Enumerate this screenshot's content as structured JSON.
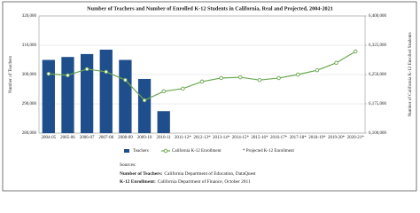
{
  "chart_data": {
    "type": "combo",
    "title": "Number of Teachers and Number of Enrolled K-12 Students in California, Real and Projected, 2004-2021",
    "y_label": "Number of Teachers",
    "y2_label": "Number of California K-12 Enrolled Students",
    "categories": [
      "2004-05",
      "2005-06",
      "2006-07",
      "2007-08",
      "2008-09",
      "2009-10",
      "2010-11",
      "2011-12*",
      "2012-13*",
      "2013-14*",
      "2014-15*",
      "2015-16*",
      "2016-17*",
      "2017-18*",
      "2018-19*",
      "2019-20*",
      "2020-21*"
    ],
    "series": [
      {
        "name": "Teachers",
        "type": "bar",
        "color": "#1f4e8c",
        "values": [
          305000,
          306000,
          307000,
          308500,
          305000,
          298500,
          287500,
          null,
          null,
          null,
          null,
          null,
          null,
          null,
          null,
          null,
          null
        ]
      },
      {
        "name": "California K-12 Enrollment",
        "type": "line",
        "axis": "y2",
        "color": "#6aa84f",
        "values": [
          6252000,
          6248000,
          6264000,
          6257000,
          6236000,
          6184000,
          6207000,
          6214000,
          6232000,
          6241000,
          6243000,
          6236000,
          6241000,
          6250000,
          6261000,
          6280000,
          6309000
        ]
      }
    ],
    "legend_note": "* Projected K-12 Enrollment",
    "ylim": [
      280000,
      320000
    ],
    "yticks": [
      {
        "value": 280000,
        "label": "280,000"
      },
      {
        "value": 290000,
        "label": "290,000"
      },
      {
        "value": 300000,
        "label": "300,000"
      },
      {
        "value": 310000,
        "label": "310,000"
      },
      {
        "value": 320000,
        "label": "320,000"
      }
    ],
    "y2lim": [
      6100000,
      6400000
    ],
    "y2ticks": [
      {
        "value": 6100000,
        "label": "6,100,000"
      },
      {
        "value": 6175000,
        "label": "6,175,000"
      },
      {
        "value": 6250000,
        "label": "6,250,000"
      },
      {
        "value": 6325000,
        "label": "6,325,000"
      },
      {
        "value": 6400000,
        "label": "6,400,000"
      }
    ],
    "grid": true,
    "sources": {
      "heading": "Sources:",
      "items": [
        {
          "label": "Number of Teachers:",
          "text": "California Department of Education, DataQuest"
        },
        {
          "label": "K-12 Enrollment:",
          "text": "California Department of Finance, October 2011"
        }
      ]
    }
  }
}
